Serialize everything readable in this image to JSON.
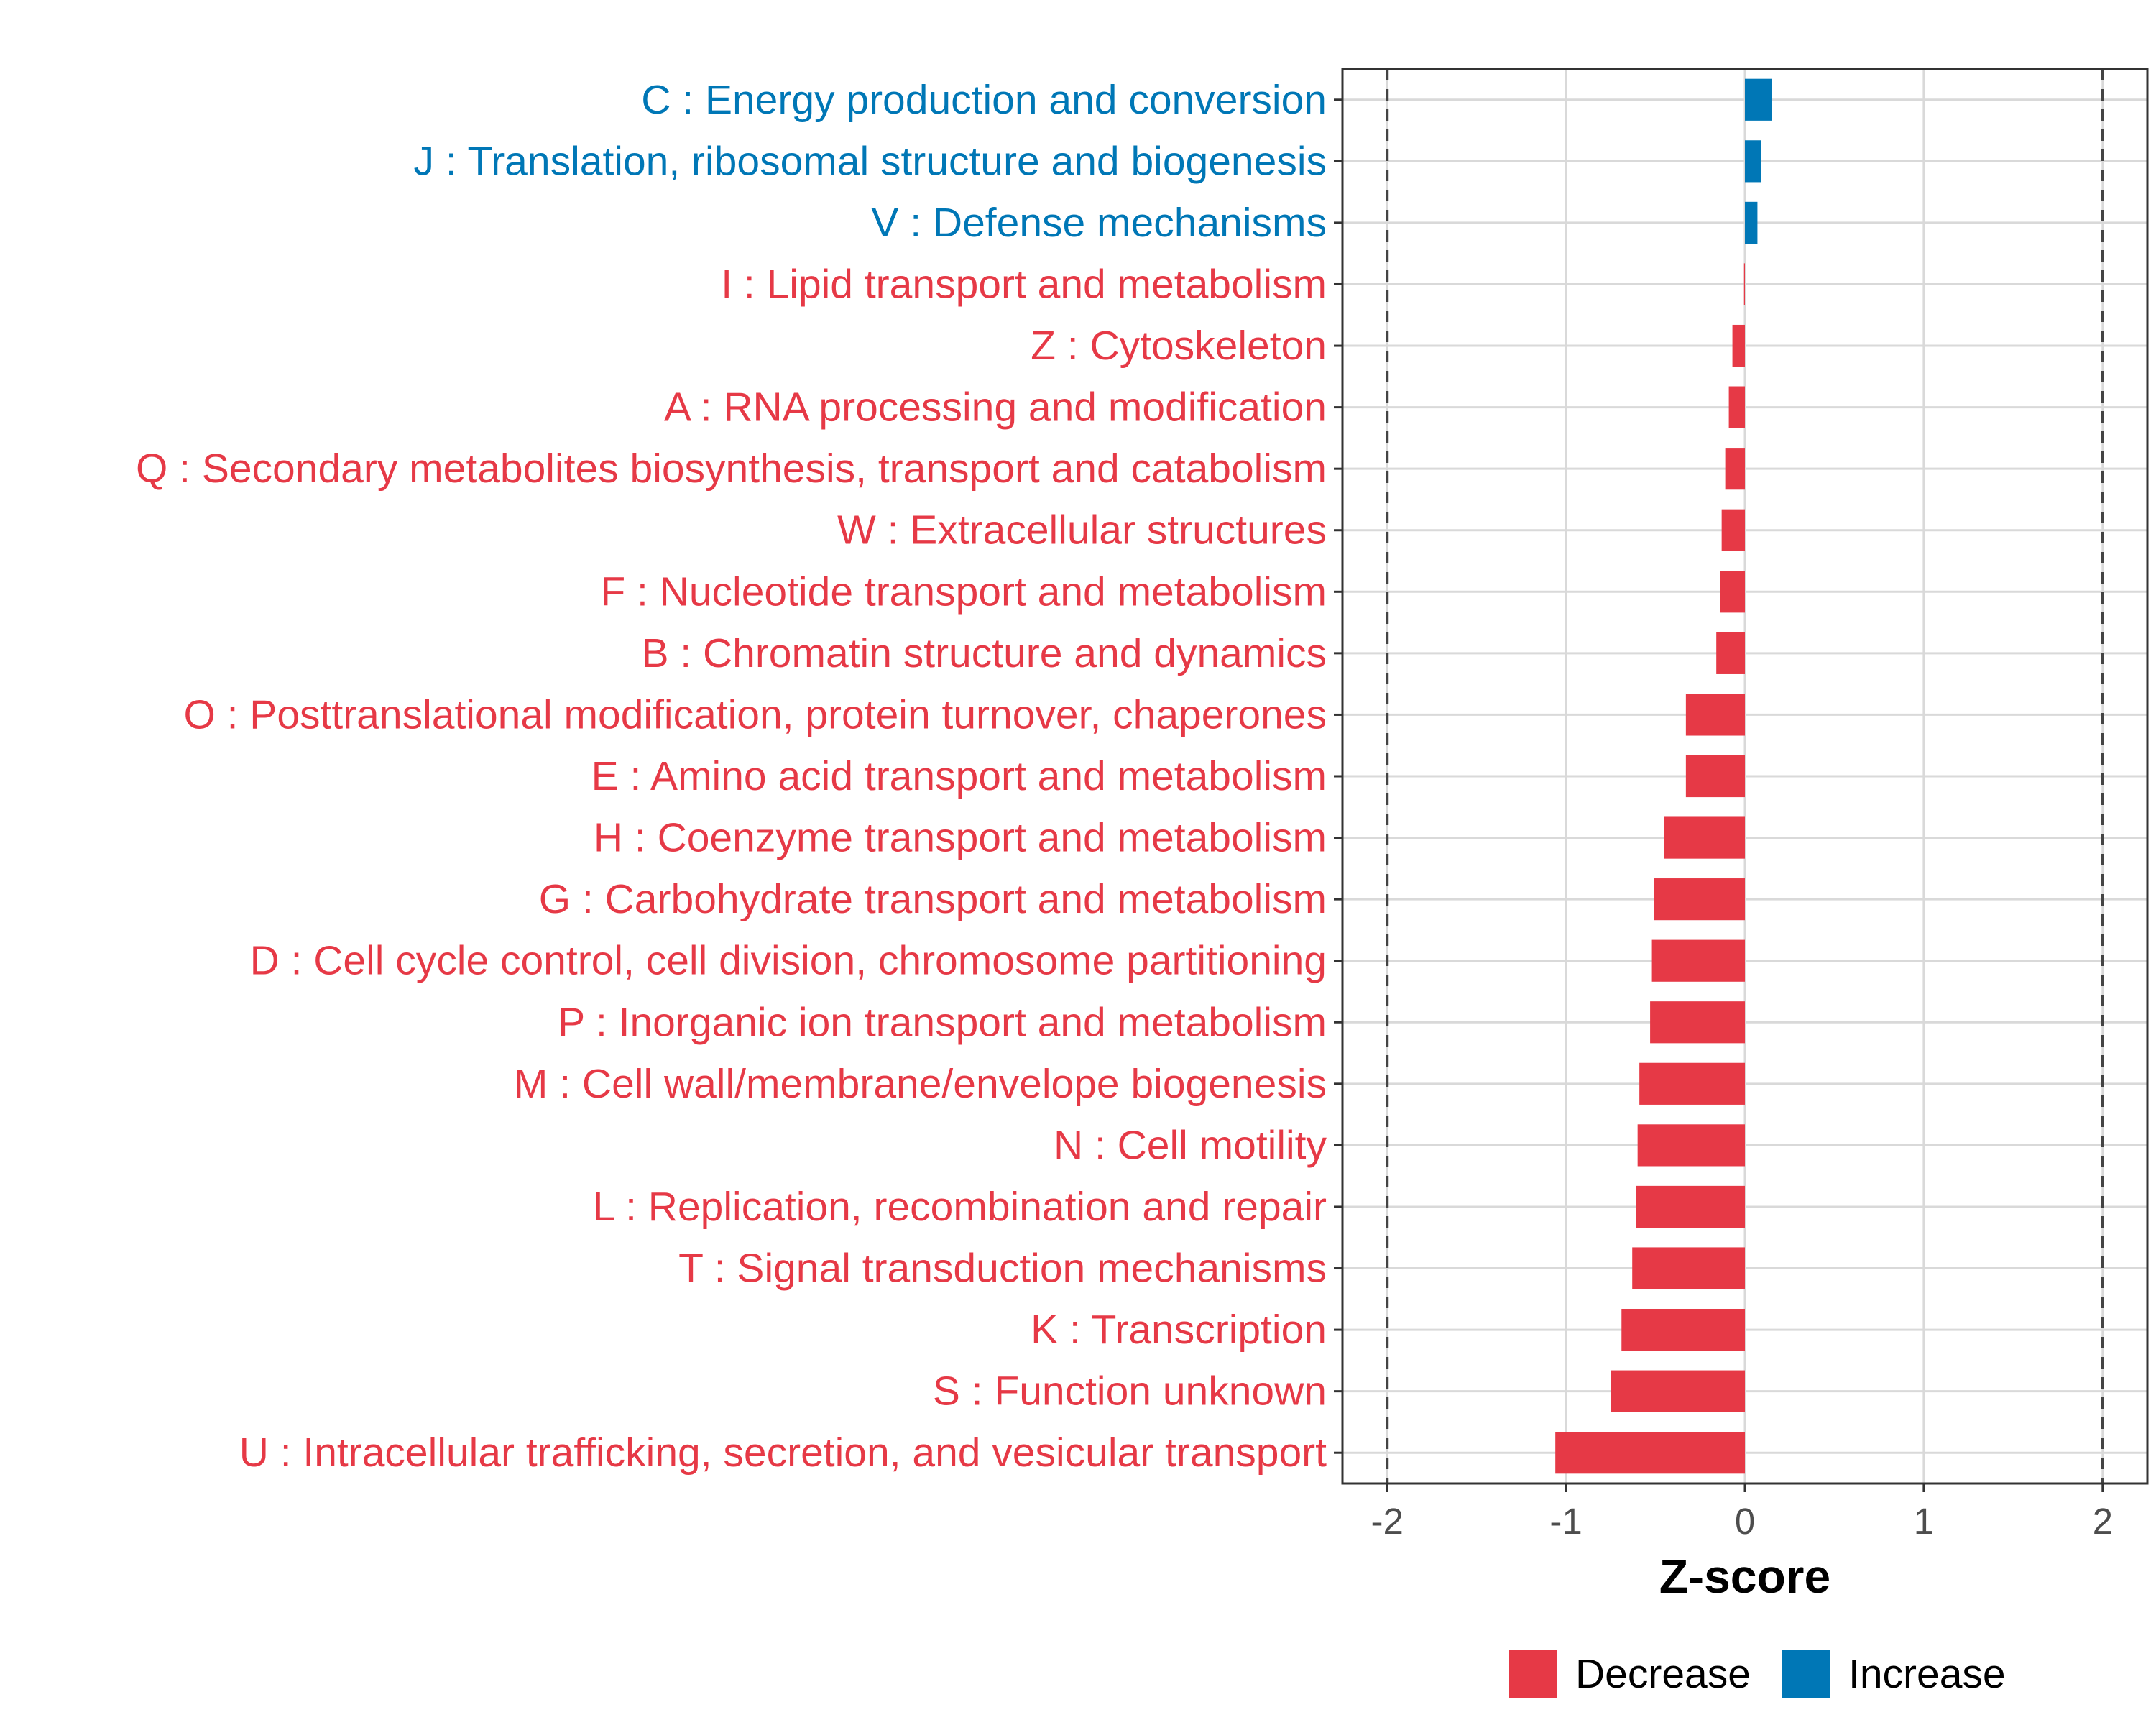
{
  "chart_data": {
    "type": "bar",
    "orientation": "horizontal",
    "categories": [
      "C : Energy production and conversion",
      "J : Translation, ribosomal structure and biogenesis",
      "V : Defense mechanisms",
      "I : Lipid transport and metabolism",
      "Z : Cytoskeleton",
      "A : RNA processing and modification",
      "Q : Secondary metabolites biosynthesis, transport and catabolism",
      "W : Extracellular structures",
      "F : Nucleotide transport and metabolism",
      "B : Chromatin structure and dynamics",
      "O : Posttranslational modification, protein turnover, chaperones",
      "E : Amino acid transport and metabolism",
      "H : Coenzyme transport and metabolism",
      "G : Carbohydrate transport and metabolism",
      "D : Cell cycle control, cell division, chromosome partitioning",
      "P : Inorganic ion transport and metabolism",
      "M : Cell wall/membrane/envelope biogenesis",
      "N : Cell motility",
      "L : Replication, recombination and repair",
      "T : Signal transduction mechanisms",
      "K : Transcription",
      "S : Function unknown",
      "U : Intracellular trafficking, secretion, and vesicular transport"
    ],
    "values": [
      0.15,
      0.09,
      0.07,
      -0.005,
      -0.07,
      -0.09,
      -0.11,
      -0.13,
      -0.14,
      -0.16,
      -0.33,
      -0.33,
      -0.45,
      -0.51,
      -0.52,
      -0.53,
      -0.59,
      -0.6,
      -0.61,
      -0.63,
      -0.69,
      -0.75,
      -1.06
    ],
    "direction": [
      "Increase",
      "Increase",
      "Increase",
      "Decrease",
      "Decrease",
      "Decrease",
      "Decrease",
      "Decrease",
      "Decrease",
      "Decrease",
      "Decrease",
      "Decrease",
      "Decrease",
      "Decrease",
      "Decrease",
      "Decrease",
      "Decrease",
      "Decrease",
      "Decrease",
      "Decrease",
      "Decrease",
      "Decrease",
      "Decrease"
    ],
    "xlabel": "Z-score",
    "ylabel": "",
    "xlim": [
      -2.25,
      2.25
    ],
    "xticks": [
      -2,
      -1,
      0,
      1,
      2
    ],
    "xtick_labels": [
      "-2",
      "-1",
      "0",
      "1",
      "2"
    ],
    "reference_lines": [
      -2,
      2
    ],
    "grid": true,
    "legend": {
      "position": "bottom",
      "entries": [
        {
          "label": "Decrease",
          "color": "#e63946"
        },
        {
          "label": "Increase",
          "color": "#0077b6"
        }
      ]
    }
  },
  "colors": {
    "decrease": "#e63946",
    "increase": "#0077b6",
    "grid": "#d9d9d9",
    "axis": "#333333",
    "tick_text": "#4d4d4d"
  }
}
